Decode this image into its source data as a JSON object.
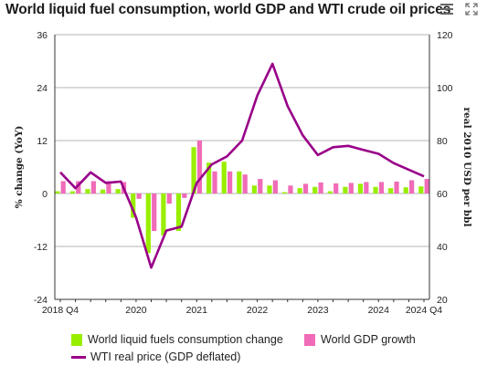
{
  "header": {
    "title": "World liquid fuel consumption, world GDP and WTI crude oil prices"
  },
  "toolbar": {
    "menu_icon": "hamburger-menu-icon",
    "expand_icon": "expand-icon"
  },
  "colors": {
    "consumption": "#99ee00",
    "gdp": "#f06bb8",
    "wti": "#990088",
    "grid": "#b5b5b5",
    "axis": "#333333"
  },
  "chart_data": {
    "type": "bar",
    "title": "World liquid fuel consumption, world GDP and WTI crude oil prices",
    "ylabel_left": "% change (YoY)",
    "ylabel_right": "real 2010 USD per bbl",
    "ylim_left": [
      -24,
      36
    ],
    "ylim_right": [
      20,
      120
    ],
    "yticks_left": [
      "-24",
      "-12",
      "0",
      "12",
      "24",
      "36"
    ],
    "yticks_right": [
      "20",
      "40",
      "60",
      "80",
      "100",
      "120"
    ],
    "xticks": [
      "2018 Q4",
      "2020",
      "2021",
      "2022",
      "2023",
      "2024",
      "2024 Q4"
    ],
    "xtick_quarter_index": [
      0,
      5,
      9,
      13,
      17,
      21,
      24
    ],
    "grid": true,
    "legend_position": "bottom",
    "quarters": [
      "2018 Q4",
      "2019 Q1",
      "2019 Q2",
      "2019 Q3",
      "2019 Q4",
      "2020 Q1",
      "2020 Q2",
      "2020 Q3",
      "2020 Q4",
      "2021 Q1",
      "2021 Q2",
      "2021 Q3",
      "2021 Q4",
      "2022 Q1",
      "2022 Q2",
      "2022 Q3",
      "2022 Q4",
      "2023 Q1",
      "2023 Q2",
      "2023 Q3",
      "2023 Q4",
      "2024 Q1",
      "2024 Q2",
      "2024 Q3",
      "2024 Q4"
    ],
    "series": [
      {
        "name": "World liquid fuels consumption change",
        "kind": "bar",
        "axis": "left",
        "values": [
          0.5,
          0.5,
          1.0,
          0.9,
          1.0,
          -5.5,
          -13.5,
          -9.5,
          -8.5,
          10.5,
          7.0,
          7.2,
          5.0,
          1.8,
          1.8,
          0.3,
          1.2,
          1.5,
          0.5,
          1.5,
          2.2,
          1.5,
          1.2,
          1.4,
          1.6
        ]
      },
      {
        "name": "World GDP growth",
        "kind": "bar",
        "axis": "left",
        "values": [
          2.8,
          2.8,
          2.8,
          2.8,
          2.6,
          -1.2,
          -8.5,
          -2.3,
          -1.0,
          12.0,
          5.0,
          5.0,
          4.3,
          3.3,
          3.0,
          1.8,
          2.2,
          2.5,
          2.3,
          2.4,
          2.6,
          2.6,
          2.7,
          3.0,
          3.3
        ]
      },
      {
        "name": "WTI real price (GDP deflated)",
        "kind": "line",
        "axis": "right",
        "values": [
          68,
          62,
          68,
          64,
          64.5,
          51,
          32,
          46,
          47.5,
          64,
          71,
          74,
          80,
          97,
          109,
          93,
          82,
          74.5,
          77.5,
          78,
          76.5,
          75,
          71.5,
          69,
          66.5
        ]
      }
    ]
  },
  "legend": {
    "items": [
      {
        "label": "World liquid fuels consumption change"
      },
      {
        "label": "World GDP growth"
      },
      {
        "label": "WTI real price (GDP deflated)"
      }
    ]
  }
}
